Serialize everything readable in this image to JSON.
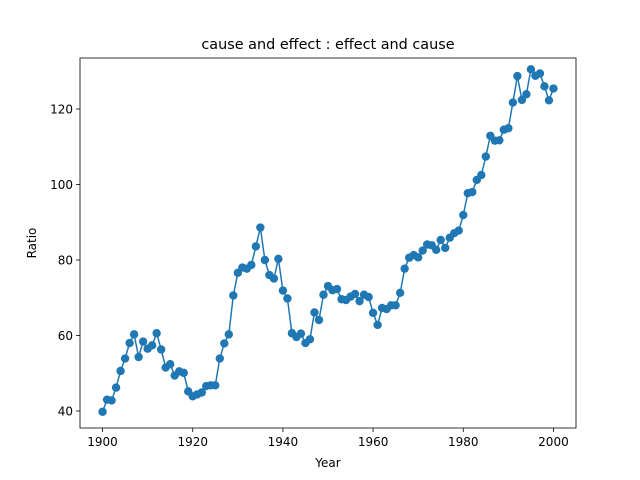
{
  "chart_data": {
    "type": "line",
    "title": "cause and effect : effect and cause",
    "xlabel": "Year",
    "ylabel": "Ratio",
    "xlim": [
      1895,
      2005
    ],
    "ylim": [
      35.5,
      133.5
    ],
    "xticks": [
      1900,
      1920,
      1940,
      1960,
      1980,
      2000
    ],
    "yticks": [
      40,
      60,
      80,
      100,
      120
    ],
    "grid": false,
    "legend": "none",
    "color": "#1f77b4",
    "markers": true,
    "series": [
      {
        "x": [
          1900,
          1901,
          1902,
          1903,
          1904,
          1905,
          1906,
          1907,
          1908,
          1909,
          1910,
          1911,
          1912,
          1913,
          1914,
          1915,
          1916,
          1917,
          1918,
          1919,
          1920,
          1921,
          1922,
          1923,
          1924,
          1925,
          1926,
          1927,
          1928,
          1929,
          1930,
          1931,
          1932,
          1933,
          1934,
          1935,
          1936,
          1937,
          1938,
          1939,
          1940,
          1941,
          1942,
          1943,
          1944,
          1945,
          1946,
          1947,
          1948,
          1949,
          1950,
          1951,
          1952,
          1953,
          1954,
          1955,
          1956,
          1957,
          1958,
          1959,
          1960,
          1961,
          1962,
          1963,
          1964,
          1965,
          1966,
          1967,
          1968,
          1969,
          1970,
          1971,
          1972,
          1973,
          1974,
          1975,
          1976,
          1977,
          1978,
          1979,
          1980,
          1981,
          1982,
          1983,
          1984,
          1985,
          1986,
          1987,
          1988,
          1989,
          1990,
          1991,
          1992,
          1993,
          1994,
          1995,
          1996,
          1997,
          1998,
          1999,
          2000
        ],
        "y": [
          39.8,
          43.0,
          42.8,
          46.2,
          50.6,
          53.9,
          58.0,
          60.3,
          54.3,
          58.4,
          56.5,
          57.4,
          60.6,
          56.3,
          51.5,
          52.4,
          49.4,
          50.5,
          50.1,
          45.2,
          43.9,
          44.4,
          44.9,
          46.6,
          46.8,
          46.8,
          53.9,
          57.9,
          60.3,
          70.6,
          76.6,
          78.0,
          77.7,
          78.7,
          83.6,
          88.6,
          80.0,
          76.0,
          75.1,
          80.3,
          71.9,
          69.8,
          60.6,
          59.6,
          60.5,
          58.0,
          59.0,
          66.1,
          64.1,
          70.8,
          73.1,
          72.0,
          72.3,
          69.6,
          69.4,
          70.3,
          71.0,
          69.1,
          70.8,
          70.2,
          66.0,
          62.8,
          67.3,
          67.0,
          68.0,
          68.0,
          71.3,
          77.7,
          80.6,
          81.3,
          80.7,
          82.5,
          84.1,
          83.9,
          82.7,
          85.3,
          83.2,
          85.9,
          87.1,
          87.8,
          91.9,
          97.7,
          98.0,
          101.2,
          102.5,
          107.4,
          112.9,
          111.6,
          111.7,
          114.5,
          114.9,
          121.7,
          128.7,
          122.4,
          123.9,
          130.5,
          128.8,
          129.4,
          126.0,
          122.3,
          125.4
        ]
      }
    ]
  }
}
